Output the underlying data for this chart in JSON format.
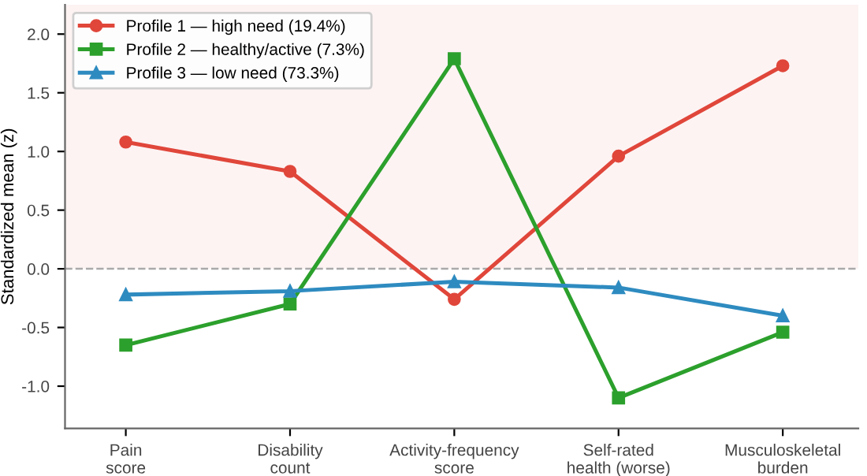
{
  "chart_data": {
    "type": "line",
    "ylabel": "Standardized mean (z)",
    "categories": [
      "Pain\nscore",
      "Disability\ncount",
      "Activity-frequency\nscore",
      "Self-rated\nhealth (worse)",
      "Musculoskeletal\nburden"
    ],
    "series": [
      {
        "name": "Profile 1 — high need (19.4%)",
        "color": "#e0463a",
        "marker": "circle",
        "values": [
          1.08,
          0.83,
          -0.26,
          0.96,
          1.73
        ]
      },
      {
        "name": "Profile 2 — healthy/active (7.3%)",
        "color": "#2ca02c",
        "marker": "square",
        "values": [
          -0.65,
          -0.3,
          1.79,
          -1.1,
          -0.54
        ]
      },
      {
        "name": "Profile 3 — low need (73.3%)",
        "color": "#2e8bc0",
        "marker": "triangle",
        "values": [
          -0.22,
          -0.19,
          -0.11,
          -0.16,
          -0.4
        ]
      }
    ],
    "ylim": [
      -1.36,
      2.25
    ],
    "yticks": [
      {
        "value": -1.0,
        "label": "-1.0"
      },
      {
        "value": -0.5,
        "label": "-0.5"
      },
      {
        "value": 0.0,
        "label": "0.0"
      },
      {
        "value": 0.5,
        "label": "0.5"
      },
      {
        "value": 1.0,
        "label": "1.0"
      },
      {
        "value": 1.5,
        "label": "1.5"
      },
      {
        "value": 2.0,
        "label": "2.0"
      }
    ],
    "ref_lines": [
      {
        "axis": "y",
        "value": 0,
        "color": "#aaaaaa",
        "line_style": "dashed"
      }
    ],
    "bands": [
      {
        "axis": "y",
        "from": 0,
        "to": 2.25,
        "color": "#fdf3f3"
      }
    ],
    "grid": false,
    "legend": "top left",
    "line_style": "solid"
  }
}
